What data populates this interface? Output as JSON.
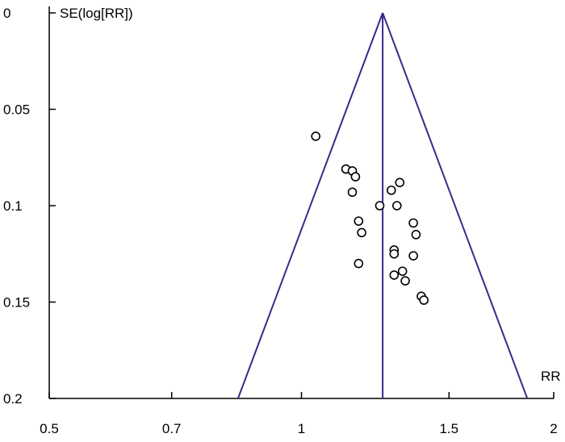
{
  "chart_data": {
    "type": "scatter",
    "title": "",
    "subtitle": "",
    "xlabel": "RR",
    "ylabel": "SE(log[RR])",
    "x_scale": "log",
    "y_reversed": true,
    "xlim": [
      0.5,
      2
    ],
    "ylim": [
      0,
      0.2
    ],
    "x_ticks": [
      {
        "value": 0.5,
        "label": "0.5"
      },
      {
        "value": 0.7,
        "label": "0.7"
      },
      {
        "value": 1,
        "label": "1"
      },
      {
        "value": 1.5,
        "label": "1.5"
      },
      {
        "value": 2,
        "label": "2"
      }
    ],
    "y_ticks": [
      {
        "value": 0,
        "label": "0"
      },
      {
        "value": 0.05,
        "label": "0.05"
      },
      {
        "value": 0.1,
        "label": "0.1"
      },
      {
        "value": 0.15,
        "label": "0.15"
      },
      {
        "value": 0.2,
        "label": "0.2"
      }
    ],
    "grid": false,
    "legend": "none",
    "pooled_estimate_rr": 1.25,
    "funnel": {
      "apex": [
        1.25,
        0
      ],
      "base_left": [
        0.84,
        0.2
      ],
      "base_right": [
        1.86,
        0.2
      ]
    },
    "series": [
      {
        "points": [
          {
            "x": 1.04,
            "y": 0.064
          },
          {
            "x": 1.13,
            "y": 0.081
          },
          {
            "x": 1.15,
            "y": 0.082
          },
          {
            "x": 1.16,
            "y": 0.085
          },
          {
            "x": 1.15,
            "y": 0.093
          },
          {
            "x": 1.24,
            "y": 0.1
          },
          {
            "x": 1.28,
            "y": 0.092
          },
          {
            "x": 1.31,
            "y": 0.088
          },
          {
            "x": 1.3,
            "y": 0.1
          },
          {
            "x": 1.17,
            "y": 0.108
          },
          {
            "x": 1.18,
            "y": 0.114
          },
          {
            "x": 1.36,
            "y": 0.109
          },
          {
            "x": 1.37,
            "y": 0.115
          },
          {
            "x": 1.29,
            "y": 0.123
          },
          {
            "x": 1.29,
            "y": 0.125
          },
          {
            "x": 1.36,
            "y": 0.126
          },
          {
            "x": 1.17,
            "y": 0.13
          },
          {
            "x": 1.32,
            "y": 0.134
          },
          {
            "x": 1.29,
            "y": 0.136
          },
          {
            "x": 1.33,
            "y": 0.139
          },
          {
            "x": 1.39,
            "y": 0.147
          },
          {
            "x": 1.4,
            "y": 0.149
          }
        ]
      }
    ],
    "colors": {
      "funnel_line": "#3a2a8a",
      "axis": "#000000",
      "marker": "#000000"
    }
  }
}
